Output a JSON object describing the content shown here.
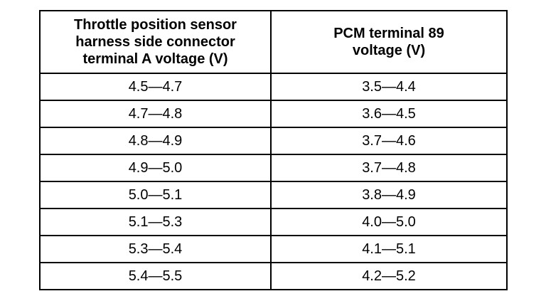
{
  "table": {
    "headers": [
      {
        "lines": [
          "Throttle position sensor",
          "harness side connector",
          "terminal A voltage (V)"
        ]
      },
      {
        "lines": [
          "PCM terminal 89",
          "voltage (V)"
        ]
      }
    ],
    "rows": [
      [
        "4.5—4.7",
        "3.5—4.4"
      ],
      [
        "4.7—4.8",
        "3.6—4.5"
      ],
      [
        "4.8—4.9",
        "3.7—4.6"
      ],
      [
        "4.9—5.0",
        "3.7—4.8"
      ],
      [
        "5.0—5.1",
        "3.8—4.9"
      ],
      [
        "5.1—5.3",
        "4.0—5.0"
      ],
      [
        "5.3—5.4",
        "4.1—5.1"
      ],
      [
        "5.4—5.5",
        "4.2—5.2"
      ]
    ]
  }
}
